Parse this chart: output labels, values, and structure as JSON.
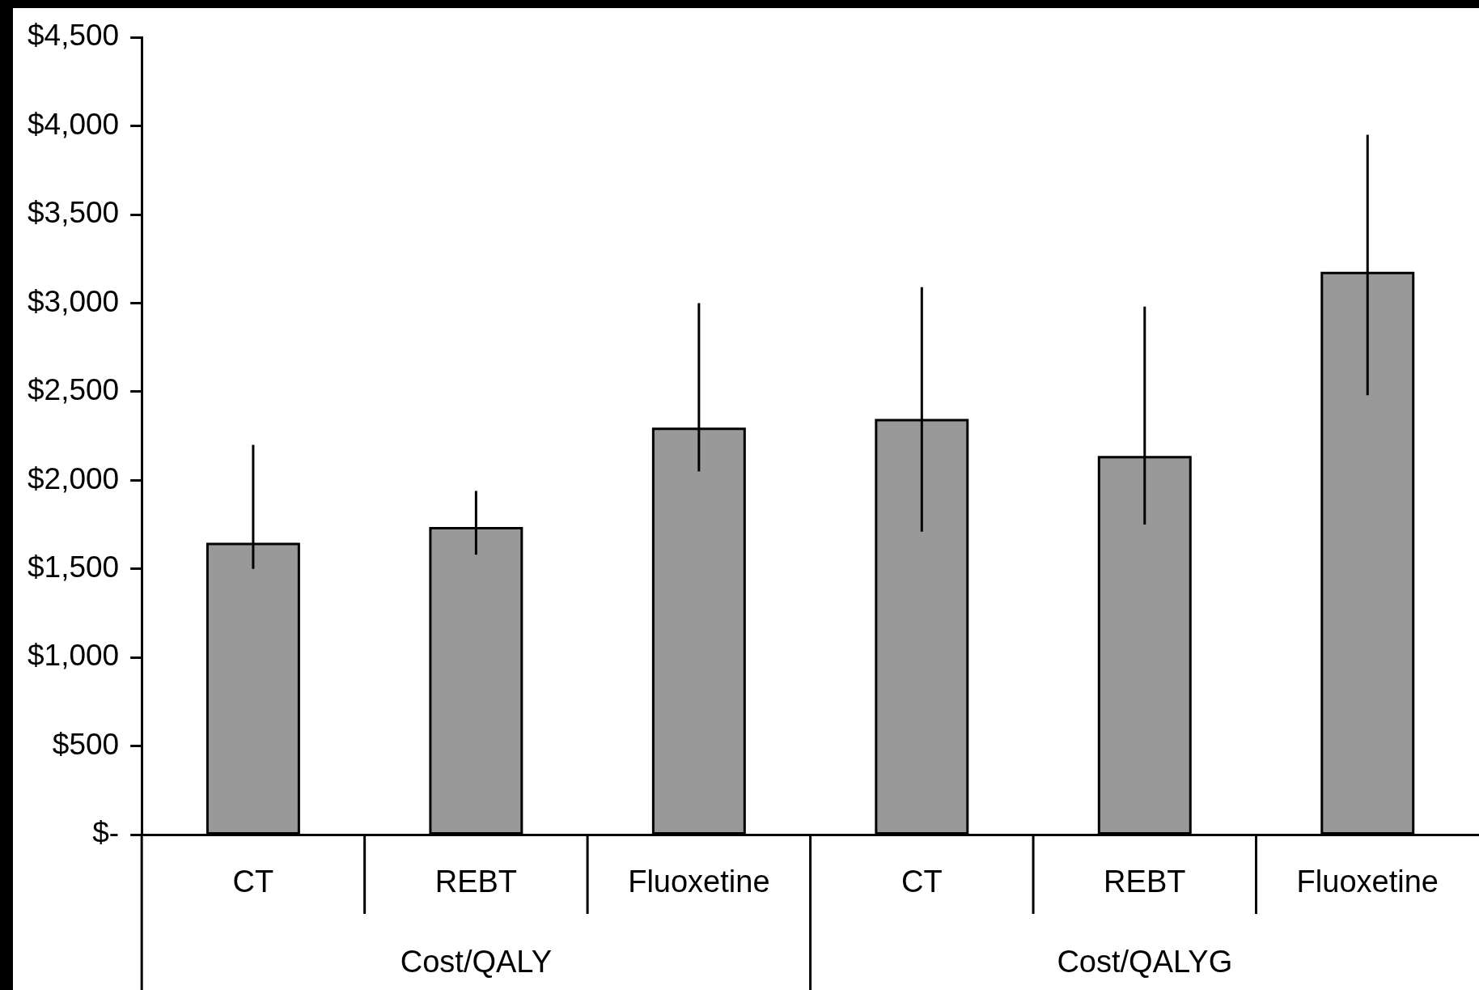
{
  "chart_data": {
    "type": "bar",
    "categories": [
      "CT",
      "REBT",
      "Fluoxetine",
      "CT",
      "REBT",
      "Fluoxetine"
    ],
    "values": [
      1640,
      1730,
      2290,
      2340,
      2130,
      3170
    ],
    "errors": [
      [
        1500,
        2200
      ],
      [
        1580,
        1940
      ],
      [
        2050,
        3000
      ],
      [
        1710,
        3090
      ],
      [
        1750,
        2980
      ],
      [
        2480,
        3950
      ]
    ],
    "color": "#999999",
    "ylim": [
      0,
      4500
    ],
    "yticks": [
      {
        "value": 0,
        "label": "$-"
      },
      {
        "value": 500,
        "label": "$500"
      },
      {
        "value": 1000,
        "label": "$1,000"
      },
      {
        "value": 1500,
        "label": "$1,500"
      },
      {
        "value": 2000,
        "label": "$2,000"
      },
      {
        "value": 2500,
        "label": "$2,500"
      },
      {
        "value": 3000,
        "label": "$3,000"
      },
      {
        "value": 3500,
        "label": "$3,500"
      },
      {
        "value": 4000,
        "label": "$4,000"
      },
      {
        "value": 4500,
        "label": "$4,500"
      }
    ],
    "annotations": [
      "Cost/QALY",
      "Cost/QALYG"
    ],
    "grid": false,
    "legend": false
  }
}
